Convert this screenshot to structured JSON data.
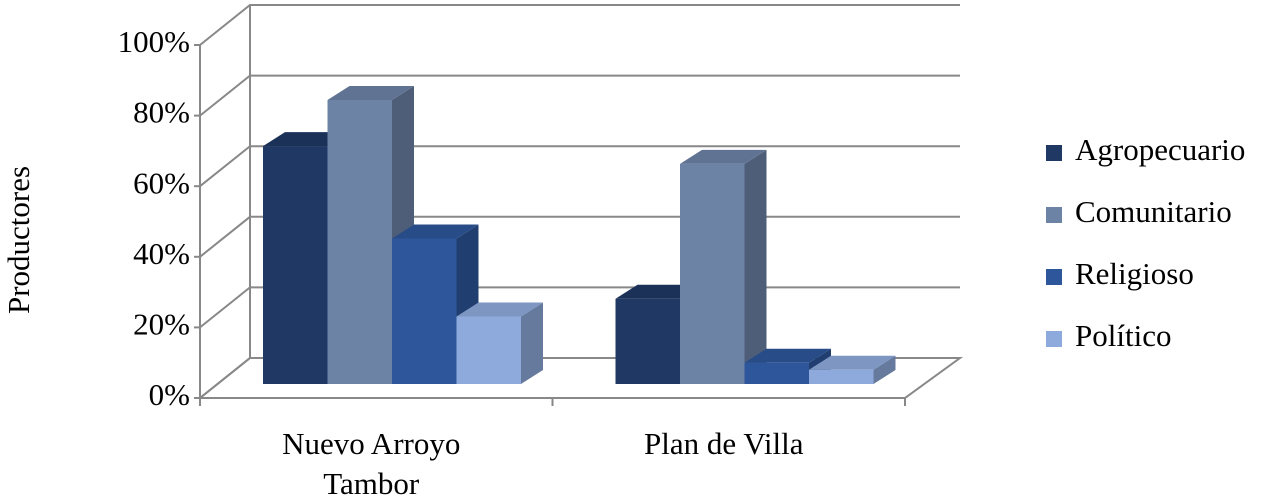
{
  "chart_data": {
    "type": "bar3d",
    "y_label": "Productores",
    "categories": [
      "Nuevo Arroyo Tambor",
      "Plan de Villa"
    ],
    "series": [
      {
        "name": "Agropecuario",
        "color": "#1f3864",
        "values": [
          67,
          24
        ]
      },
      {
        "name": "Comunitario",
        "color": "#6d83a6",
        "values": [
          80,
          62
        ]
      },
      {
        "name": "Religioso",
        "color": "#2e569b",
        "values": [
          41,
          6
        ]
      },
      {
        "name": "Político",
        "color": "#8eaadc",
        "values": [
          19,
          4
        ]
      }
    ],
    "ylim": [
      0,
      100
    ],
    "yticks": [
      {
        "value": 0,
        "label": "0%"
      },
      {
        "value": 20,
        "label": "20%"
      },
      {
        "value": 40,
        "label": "40%"
      },
      {
        "value": 60,
        "label": "60%"
      },
      {
        "value": 80,
        "label": "80%"
      },
      {
        "value": 100,
        "label": "100%"
      }
    ],
    "grid": true,
    "legend": "right"
  }
}
